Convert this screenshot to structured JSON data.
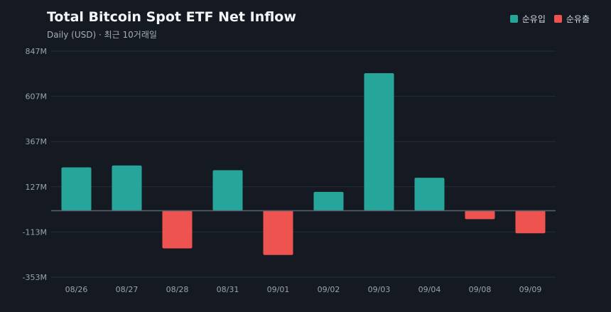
{
  "header": {
    "title": "Total Bitcoin Spot ETF Net Inflow",
    "subtitle": "Daily (USD) · 최근 10거래일"
  },
  "legend": [
    {
      "label": "순유입",
      "color": "#26a69a"
    },
    {
      "label": "순유출",
      "color": "#ef5350"
    }
  ],
  "chart_data": {
    "type": "bar",
    "title": "Total Bitcoin Spot ETF Net Inflow",
    "subtitle": "Daily (USD) · 최근 10거래일",
    "categories": [
      "08/26",
      "08/27",
      "08/28",
      "08/31",
      "09/01",
      "09/02",
      "09/03",
      "09/04",
      "09/08",
      "09/09"
    ],
    "values": [
      230,
      240,
      -200,
      215,
      -235,
      100,
      730,
      175,
      -45,
      -120
    ],
    "unit": "M",
    "y_ticks": [
      "847M",
      "607M",
      "367M",
      "127M",
      "-113M",
      "-353M"
    ],
    "ylim": [
      -353,
      847
    ],
    "grid": true,
    "legend_position": "top-right",
    "colors": {
      "positive": "#26a69a",
      "negative": "#ef5350",
      "grid": "#262d38",
      "zero_line": "#5a6270"
    }
  }
}
